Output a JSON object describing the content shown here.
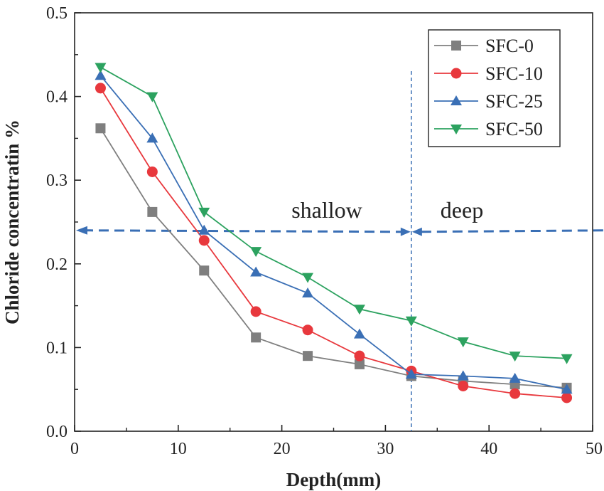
{
  "chart_data": {
    "type": "line",
    "title": "",
    "xlabel": "Depth(mm)",
    "ylabel": "Chloride concentratin %",
    "xlim": [
      0,
      50
    ],
    "ylim": [
      0,
      0.5
    ],
    "x_ticks": [
      "0",
      "10",
      "20",
      "30",
      "40",
      "50"
    ],
    "y_ticks": [
      "0.0",
      "0.1",
      "0.2",
      "0.3",
      "0.4",
      "0.5"
    ],
    "x": [
      2.5,
      7.5,
      12.5,
      17.5,
      22.5,
      27.5,
      32.5,
      37.5,
      42.5,
      47.5
    ],
    "series": [
      {
        "name": "SFC-0",
        "color": "#7f7f7f",
        "marker": "square",
        "values": [
          0.362,
          0.262,
          0.192,
          0.112,
          0.09,
          0.08,
          0.066,
          0.06,
          0.056,
          0.052
        ]
      },
      {
        "name": "SFC-10",
        "color": "#e8383d",
        "marker": "circle",
        "values": [
          0.41,
          0.31,
          0.228,
          0.143,
          0.121,
          0.09,
          0.072,
          0.054,
          0.045,
          0.04
        ]
      },
      {
        "name": "SFC-25",
        "color": "#3a6fb5",
        "marker": "triangle-up",
        "values": [
          0.425,
          0.35,
          0.24,
          0.19,
          0.165,
          0.116,
          0.068,
          0.066,
          0.063,
          0.05
        ]
      },
      {
        "name": "SFC-50",
        "color": "#2ca25f",
        "marker": "triangle-down",
        "values": [
          0.435,
          0.4,
          0.262,
          0.215,
          0.184,
          0.146,
          0.132,
          0.107,
          0.09,
          0.087
        ]
      }
    ],
    "legend_position": "top-right",
    "annotations": {
      "shallow_label": "shallow",
      "deep_label": "deep",
      "threshold_y": 0.24,
      "boundary_x": 32.5,
      "arrow_color": "#3a6fb5"
    }
  }
}
